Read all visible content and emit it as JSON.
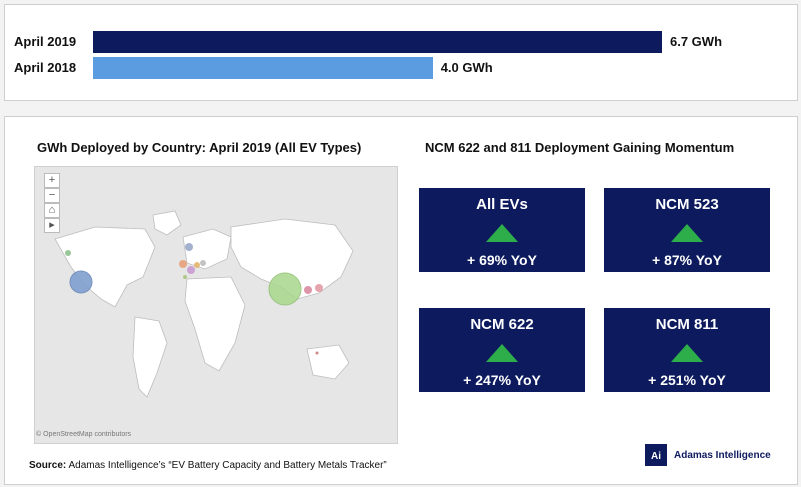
{
  "colors": {
    "april_2019_bar": "#0d1b5e",
    "april_2018_bar": "#5b9be0",
    "tile_bg": "#0d1b5e",
    "tile_arrow": "#2ead4b",
    "china_bubble": "#a8d88c",
    "usa_bubble": "#7f9fcf"
  },
  "chart_data": [
    {
      "type": "bar",
      "orientation": "horizontal",
      "categories": [
        "April 2019",
        "April 2018"
      ],
      "values": [
        6.7,
        4.0
      ],
      "value_labels": [
        "6.7 GWh",
        "4.0 GWh"
      ],
      "xlim": [
        0,
        6.7
      ]
    },
    {
      "type": "scatter",
      "title": "GWh Deployed by Country: April 2019 (All EV Types)",
      "description_kind": "bubble-map",
      "attribution": "© OpenStreetMap contributors"
    },
    {
      "type": "table",
      "title": "NCM 622 and 811 Deployment Gaining Momentum",
      "tiles": [
        {
          "name": "All EVs",
          "yoy": "+ 69% YoY",
          "trend": "up"
        },
        {
          "name": "NCM 523",
          "yoy": "+ 87% YoY",
          "trend": "up"
        },
        {
          "name": "NCM 622",
          "yoy": "+ 247% YoY",
          "trend": "up"
        },
        {
          "name": "NCM 811",
          "yoy": "+ 251% YoY",
          "trend": "up"
        }
      ]
    }
  ],
  "map_controls": [
    "+",
    "−",
    "⌂",
    "▸"
  ],
  "source": {
    "prefix": "Source:",
    "text": " Adamas Intelligence’s “EV Battery Capacity and Battery Metals Tracker”"
  },
  "logo": {
    "mark": "Ai",
    "name": "Adamas Intelligence"
  }
}
